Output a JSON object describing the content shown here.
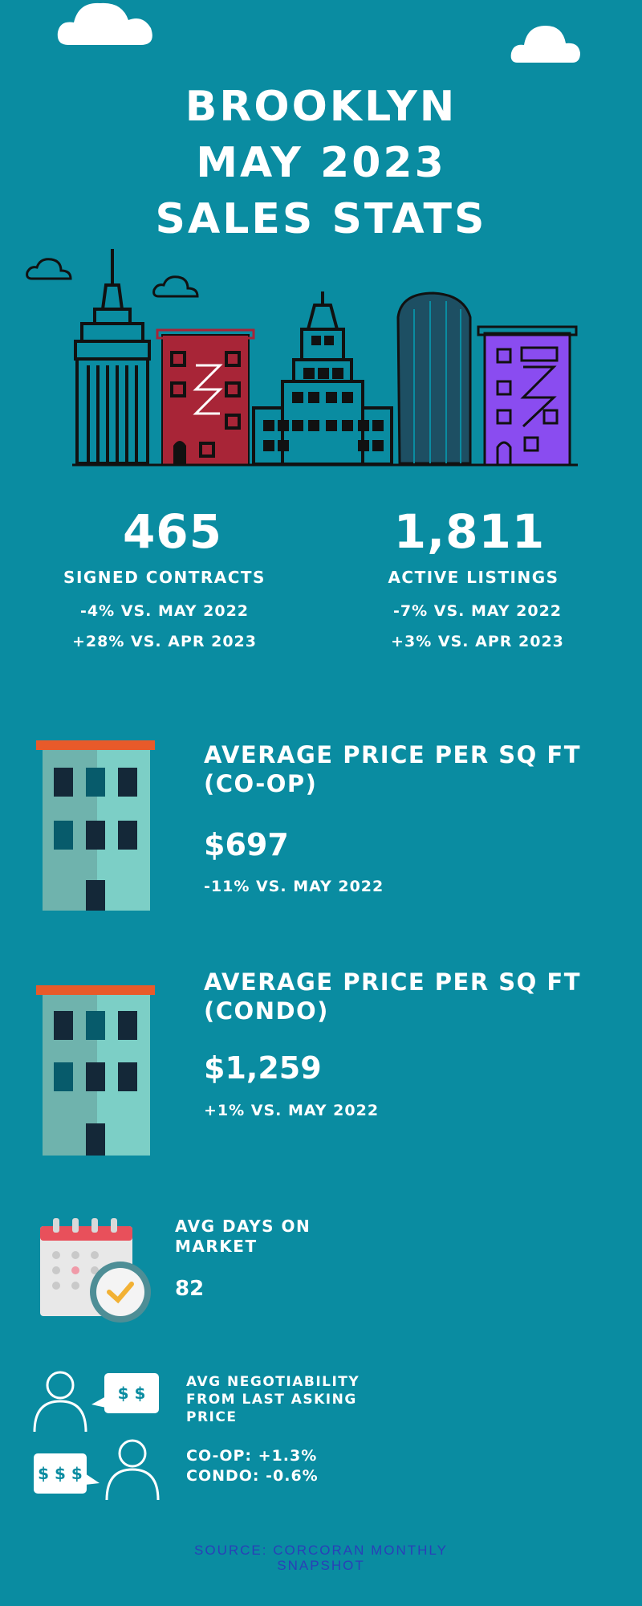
{
  "title": {
    "line1": "BROOKLYN",
    "line2": "MAY 2023",
    "line3": "SALES STATS"
  },
  "stats": [
    {
      "value": "465",
      "label": "SIGNED CONTRACTS",
      "cmp1": "-4% VS. MAY 2022",
      "cmp2": "+28% VS. APR 2023"
    },
    {
      "value": "1,811",
      "label": "ACTIVE LISTINGS",
      "cmp1": "-7% VS. MAY 2022",
      "cmp2": "+3% VS. APR 2023"
    }
  ],
  "coop": {
    "heading1": "AVERAGE PRICE PER SQ FT",
    "heading2": "(CO-OP)",
    "value": "$697",
    "cmp": "-11% VS. MAY 2022"
  },
  "condo": {
    "heading1": "AVERAGE PRICE PER SQ FT",
    "heading2": "(CONDO)",
    "value": "$1,259",
    "cmp": "+1% VS. MAY 2022"
  },
  "dom": {
    "heading1": "AVG DAYS ON",
    "heading2": "MARKET",
    "value": "82"
  },
  "negotiability": {
    "heading1": "AVG NEGOTIABILITY",
    "heading2": "FROM LAST ASKING",
    "heading3": "PRICE",
    "coop": "CO-OP: +1.3%",
    "condo": "CONDO: -0.6%",
    "bubble1": "$ $",
    "bubble2": "$ $ $"
  },
  "source": {
    "line1": "SOURCE: CORCORAN MONTHLY",
    "line2": "SNAPSHOT"
  },
  "colors": {
    "background": "#0a8ca1",
    "accent_red": "#a82537",
    "accent_purple": "#8a4cf0",
    "roof_orange": "#e85a2a",
    "building_teal": "#7ccfc6",
    "source_blue": "#2a3fb8"
  }
}
